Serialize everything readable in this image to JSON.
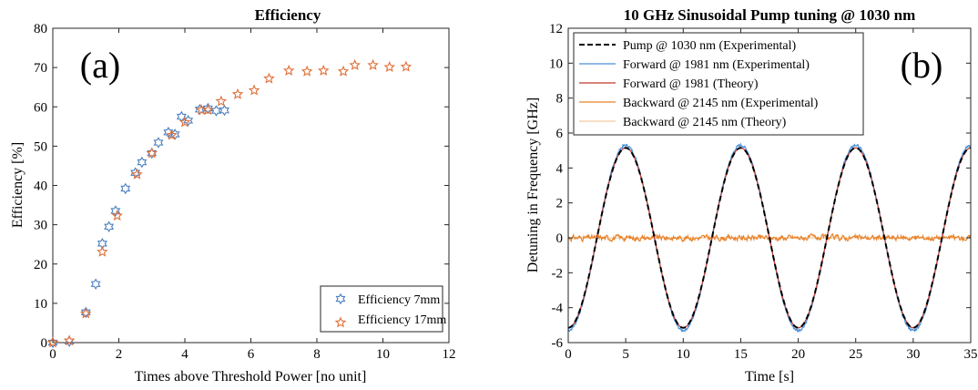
{
  "chart_data": [
    {
      "type": "scatter",
      "panel_label": "(a)",
      "title": "Efficiency",
      "xlabel": "Times above Threshold Power [no unit]",
      "ylabel": "Efficiency [%]",
      "xlim": [
        0,
        12
      ],
      "ylim": [
        0,
        80
      ],
      "xticks": [
        0,
        2,
        4,
        6,
        8,
        10,
        12
      ],
      "yticks": [
        0,
        10,
        20,
        30,
        40,
        50,
        60,
        70,
        80
      ],
      "grid": false,
      "legend_position": "bottom-right",
      "series": [
        {
          "name": "Efficiency 7mm",
          "color": "#4a7fc1",
          "marker": "hexagram",
          "x": [
            0,
            0.5,
            1.0,
            1.3,
            1.5,
            1.7,
            1.9,
            2.2,
            2.5,
            2.7,
            3.0,
            3.2,
            3.5,
            3.7,
            3.9,
            4.1,
            4.45,
            4.7,
            4.95,
            5.2
          ],
          "y": [
            0,
            0.3,
            7.7,
            14.9,
            25.2,
            29.5,
            33.5,
            39.2,
            43.2,
            45.9,
            48.2,
            50.9,
            53.5,
            53.0,
            57.5,
            56.5,
            59.3,
            59.6,
            59.0,
            59.1
          ]
        },
        {
          "name": "Efficiency 17mm",
          "color": "#e0703a",
          "marker": "pentagram",
          "x": [
            0,
            0.5,
            1.0,
            1.5,
            1.95,
            2.55,
            3.0,
            3.6,
            4.0,
            4.5,
            4.7,
            5.1,
            5.6,
            6.1,
            6.55,
            7.15,
            7.7,
            8.2,
            8.8,
            9.15,
            9.7,
            10.2,
            10.7
          ],
          "y": [
            0,
            0.5,
            7.4,
            23.1,
            32.3,
            42.8,
            48.2,
            52.8,
            56.1,
            59.2,
            59.2,
            61.4,
            63.2,
            64.2,
            67.2,
            69.2,
            69.0,
            69.2,
            69.0,
            70.6,
            70.6,
            70.1,
            70.2
          ]
        }
      ]
    },
    {
      "type": "line",
      "panel_label": "(b)",
      "title": "10 GHz Sinusoidal Pump tuning @ 1030 nm",
      "xlabel": "Time [s]",
      "ylabel": "Detuning in Frequency [GHz]",
      "xlim": [
        0,
        35
      ],
      "ylim": [
        -6,
        12
      ],
      "xticks": [
        0,
        5,
        10,
        15,
        20,
        25,
        30,
        35
      ],
      "yticks": [
        -6,
        -4,
        -2,
        0,
        2,
        4,
        6,
        8,
        10,
        12
      ],
      "grid": false,
      "legend_position": "top-left",
      "series": [
        {
          "name": "Pump @ 1030 nm (Experimental)",
          "color": "#000000",
          "style": "dashed",
          "model": "sine",
          "amplitude": 5.15,
          "period": 10,
          "peak_at": 5,
          "offset": 0
        },
        {
          "name": "Forward @ 1981 nm (Experimental)",
          "color": "#4a90d9",
          "style": "solid",
          "model": "sine-noisy",
          "amplitude": 5.3,
          "period": 10,
          "peak_at": 5,
          "offset": 0
        },
        {
          "name": "Forward @ 1981 (Theory)",
          "color": "#c0392b",
          "style": "solid",
          "model": "sine",
          "amplitude": 5.15,
          "period": 10,
          "peak_at": 5,
          "offset": 0
        },
        {
          "name": "Backward @ 2145 nm (Experimental)",
          "color": "#e8822a",
          "style": "solid",
          "model": "noise",
          "amplitude": 0.12,
          "offset": 0
        },
        {
          "name": "Backward @ 2145 nm (Theory)",
          "color": "#f2c9a0",
          "style": "solid",
          "model": "constant",
          "offset": 0
        }
      ]
    }
  ]
}
